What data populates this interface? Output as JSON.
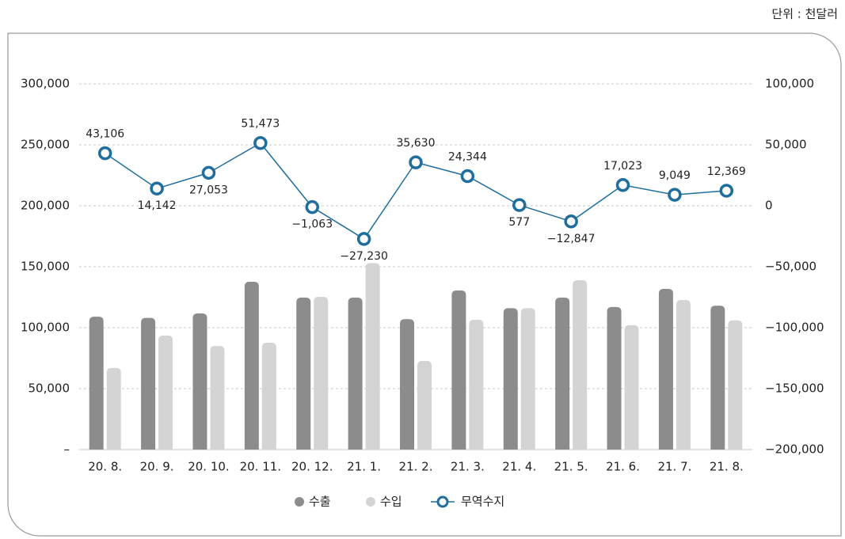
{
  "unit_note": "단위 : 천달러",
  "chart_data": {
    "type": "bar_line",
    "categories": [
      "20. 8.",
      "20. 9.",
      "20. 10.",
      "20. 11.",
      "20. 12.",
      "21. 1.",
      "21. 2.",
      "21. 3.",
      "21. 4.",
      "21. 5.",
      "21. 6.",
      "21. 7.",
      "21. 8."
    ],
    "series": [
      {
        "name": "수출",
        "color": "#8c8c8c",
        "values": [
          109000,
          108000,
          111700,
          137700,
          124700,
          124700,
          107000,
          130500,
          116000,
          124700,
          117000,
          131800,
          118000
        ]
      },
      {
        "name": "수입",
        "color": "#d4d4d4",
        "values": [
          67000,
          93500,
          85000,
          87700,
          125300,
          153000,
          72700,
          106500,
          116000,
          139000,
          102000,
          122700,
          106000
        ]
      },
      {
        "name": "무역수지",
        "color": "#1f6e9e",
        "axis": "y2",
        "values": [
          43106,
          14142,
          27053,
          51473,
          -1063,
          -27230,
          35630,
          24344,
          577,
          -12847,
          17023,
          9049,
          12369
        ],
        "value_labels": [
          "43,106",
          "14,142",
          "27,053",
          "51,473",
          "−1,063",
          "−27,230",
          "35,630",
          "24,344",
          "577",
          "−12,847",
          "17,023",
          "9,049",
          "12,369"
        ]
      }
    ],
    "ylim": [
      0,
      300000
    ],
    "yticks": [
      {
        "value": 0,
        "label": "–"
      },
      {
        "value": 50000,
        "label": "50,000"
      },
      {
        "value": 100000,
        "label": "100,000"
      },
      {
        "value": 150000,
        "label": "150,000"
      },
      {
        "value": 200000,
        "label": "200,000"
      },
      {
        "value": 250000,
        "label": "250,000"
      },
      {
        "value": 300000,
        "label": "300,000"
      }
    ],
    "y2lim": [
      -200000,
      100000
    ],
    "y2ticks": [
      {
        "value": -200000,
        "label": "−200,000"
      },
      {
        "value": -150000,
        "label": "−150,000"
      },
      {
        "value": -100000,
        "label": "−100,000"
      },
      {
        "value": -50000,
        "label": "−50,000"
      },
      0,
      {
        "value": 50000,
        "label": "50,000"
      },
      {
        "value": 100000,
        "label": "100,000"
      }
    ],
    "grid": true,
    "legend": "bottom"
  }
}
